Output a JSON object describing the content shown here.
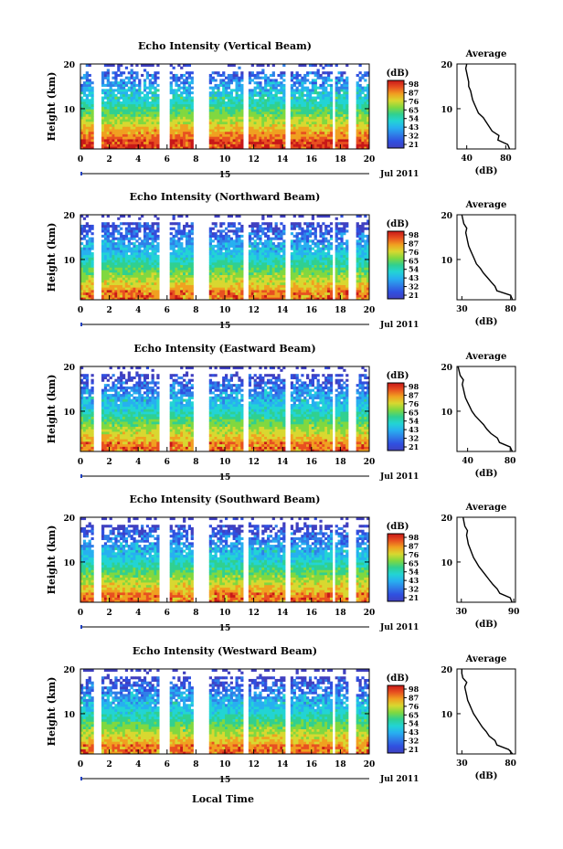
{
  "colors": {
    "background": "#ffffff",
    "axis": "#000000",
    "colormap": [
      "#4040c0",
      "#3050e0",
      "#2f7fe8",
      "#27b0f0",
      "#22d4d4",
      "#30d090",
      "#80d840",
      "#d8d830",
      "#f0a020",
      "#e85020",
      "#c81818"
    ]
  },
  "xlabel": "Local Time",
  "chart_data": [
    {
      "type": "heatmap",
      "title": "Echo Intensity (Vertical Beam)",
      "ylabel": "Height (km)",
      "x_ticks": [
        "0",
        "2",
        "4",
        "6",
        "8",
        "10",
        "12",
        "14",
        "16",
        "18",
        "20"
      ],
      "y_ticks": [
        "10",
        "20"
      ],
      "date_day": "15",
      "date_label": "Jul 2011",
      "colorbar_label": "(dB)",
      "colorbar_ticks": [
        "98",
        "87",
        "76",
        "65",
        "54",
        "43",
        "32",
        "21"
      ],
      "data_gaps_hours": [
        [
          0.9,
          1.5
        ],
        [
          5.5,
          6.2
        ],
        [
          7.8,
          8.9
        ],
        [
          11.3,
          11.7
        ],
        [
          14.2,
          14.6
        ],
        [
          17.5,
          17.7
        ],
        [
          18.6,
          19.0
        ]
      ],
      "average_profile": {
        "title": "Average",
        "xlabel": "(dB)",
        "x_ticks": [
          "40",
          "80"
        ],
        "xlim": [
          30,
          90
        ],
        "y_ticks": [
          "10",
          "20"
        ],
        "ylim": [
          1,
          20
        ],
        "heights_km": [
          1,
          2,
          3,
          4,
          5,
          6,
          7,
          8,
          9,
          10,
          11,
          12,
          13,
          14,
          15,
          16,
          17,
          18,
          19,
          20
        ],
        "values_db": [
          84,
          82,
          72,
          73,
          66,
          63,
          60,
          57,
          52,
          50,
          48,
          46,
          45,
          44,
          42,
          42,
          41,
          40,
          39,
          40
        ]
      }
    },
    {
      "type": "heatmap",
      "title": "Echo Intensity (Northward Beam)",
      "ylabel": "Height (km)",
      "x_ticks": [
        "0",
        "2",
        "4",
        "6",
        "8",
        "10",
        "12",
        "14",
        "16",
        "18",
        "20"
      ],
      "y_ticks": [
        "10",
        "20"
      ],
      "date_day": "15",
      "date_label": "Jul 2011",
      "colorbar_label": "(dB)",
      "colorbar_ticks": [
        "98",
        "87",
        "76",
        "65",
        "54",
        "43",
        "32",
        "21"
      ],
      "data_gaps_hours": [
        [
          0.9,
          1.5
        ],
        [
          5.5,
          6.2
        ],
        [
          7.8,
          8.9
        ],
        [
          11.3,
          11.7
        ],
        [
          14.2,
          14.6
        ],
        [
          17.5,
          17.7
        ],
        [
          18.6,
          19.0
        ]
      ],
      "average_profile": {
        "title": "Average",
        "xlabel": "(dB)",
        "x_ticks": [
          "30",
          "80"
        ],
        "xlim": [
          25,
          85
        ],
        "y_ticks": [
          "10",
          "20"
        ],
        "ylim": [
          1,
          20
        ],
        "heights_km": [
          1,
          2,
          3,
          4,
          5,
          6,
          7,
          8,
          9,
          10,
          11,
          12,
          13,
          14,
          15,
          16,
          17,
          18,
          19,
          20
        ],
        "values_db": [
          82,
          80,
          66,
          64,
          60,
          56,
          52,
          49,
          45,
          43,
          41,
          39,
          37,
          36,
          35,
          34,
          35,
          32,
          31,
          30
        ]
      }
    },
    {
      "type": "heatmap",
      "title": "Echo Intensity (Eastward Beam)",
      "ylabel": "Height (km)",
      "x_ticks": [
        "0",
        "2",
        "4",
        "6",
        "8",
        "10",
        "12",
        "14",
        "16",
        "18",
        "20"
      ],
      "y_ticks": [
        "10",
        "20"
      ],
      "date_day": "15",
      "date_label": "Jul 2011",
      "colorbar_label": "(dB)",
      "colorbar_ticks": [
        "98",
        "87",
        "76",
        "65",
        "54",
        "43",
        "32",
        "21"
      ],
      "data_gaps_hours": [
        [
          0.9,
          1.5
        ],
        [
          5.5,
          6.2
        ],
        [
          7.8,
          8.9
        ],
        [
          11.3,
          11.7
        ],
        [
          14.2,
          14.6
        ],
        [
          17.5,
          17.7
        ],
        [
          18.6,
          19.0
        ]
      ],
      "average_profile": {
        "title": "Average",
        "xlabel": "(dB)",
        "x_ticks": [
          "40",
          "80"
        ],
        "xlim": [
          30,
          85
        ],
        "y_ticks": [
          "10",
          "20"
        ],
        "ylim": [
          1,
          20
        ],
        "heights_km": [
          1,
          2,
          3,
          4,
          5,
          6,
          7,
          8,
          9,
          10,
          11,
          12,
          13,
          14,
          15,
          16,
          17,
          18,
          19,
          20
        ],
        "values_db": [
          82,
          80,
          70,
          68,
          62,
          58,
          55,
          51,
          47,
          44,
          42,
          40,
          38,
          37,
          36,
          35,
          36,
          33,
          32,
          31
        ]
      }
    },
    {
      "type": "heatmap",
      "title": "Echo Intensity (Southward Beam)",
      "ylabel": "Height (km)",
      "x_ticks": [
        "0",
        "2",
        "4",
        "6",
        "8",
        "10",
        "12",
        "14",
        "16",
        "18",
        "20"
      ],
      "y_ticks": [
        "10",
        "20"
      ],
      "date_day": "15",
      "date_label": "Jul 2011",
      "colorbar_label": "(dB)",
      "colorbar_ticks": [
        "98",
        "87",
        "76",
        "65",
        "54",
        "43",
        "32",
        "21"
      ],
      "data_gaps_hours": [
        [
          0.9,
          1.5
        ],
        [
          5.5,
          6.2
        ],
        [
          7.8,
          8.9
        ],
        [
          11.3,
          11.7
        ],
        [
          14.2,
          14.6
        ],
        [
          17.5,
          17.7
        ],
        [
          18.6,
          19.0
        ]
      ],
      "average_profile": {
        "title": "Average",
        "xlabel": "(dB)",
        "x_ticks": [
          "30",
          "90"
        ],
        "xlim": [
          25,
          92
        ],
        "y_ticks": [
          "10",
          "20"
        ],
        "ylim": [
          1,
          20
        ],
        "heights_km": [
          1,
          2,
          3,
          4,
          5,
          6,
          7,
          8,
          9,
          10,
          11,
          12,
          13,
          14,
          15,
          16,
          17,
          18,
          19,
          20
        ],
        "values_db": [
          88,
          86,
          74,
          71,
          66,
          62,
          58,
          54,
          50,
          47,
          44,
          42,
          40,
          38,
          37,
          36,
          37,
          34,
          33,
          32
        ]
      }
    },
    {
      "type": "heatmap",
      "title": "Echo Intensity (Westward Beam)",
      "ylabel": "Height (km)",
      "x_ticks": [
        "0",
        "2",
        "4",
        "6",
        "8",
        "10",
        "12",
        "14",
        "16",
        "18",
        "20"
      ],
      "y_ticks": [
        "10",
        "20"
      ],
      "date_day": "15",
      "date_label": "Jul 2011",
      "colorbar_label": "(dB)",
      "colorbar_ticks": [
        "98",
        "87",
        "76",
        "65",
        "54",
        "43",
        "32",
        "21"
      ],
      "data_gaps_hours": [
        [
          0.9,
          1.5
        ],
        [
          5.5,
          6.2
        ],
        [
          7.8,
          8.9
        ],
        [
          11.3,
          11.7
        ],
        [
          14.2,
          14.6
        ],
        [
          17.5,
          17.7
        ],
        [
          18.6,
          19.0
        ]
      ],
      "average_profile": {
        "title": "Average",
        "xlabel": "(dB)",
        "x_ticks": [
          "30",
          "80"
        ],
        "xlim": [
          25,
          85
        ],
        "y_ticks": [
          "10",
          "20"
        ],
        "ylim": [
          1,
          20
        ],
        "heights_km": [
          1,
          2,
          3,
          4,
          5,
          6,
          7,
          8,
          9,
          10,
          11,
          12,
          13,
          14,
          15,
          16,
          17,
          18,
          19,
          20
        ],
        "values_db": [
          82,
          78,
          66,
          64,
          58,
          55,
          51,
          48,
          45,
          42,
          40,
          38,
          36,
          35,
          34,
          33,
          35,
          31,
          30,
          30
        ]
      }
    }
  ]
}
